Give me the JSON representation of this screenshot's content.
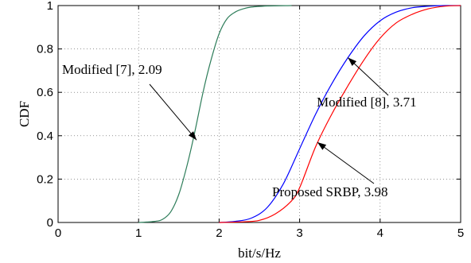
{
  "chart_data": {
    "type": "line",
    "xlabel": "bit/s/Hz",
    "ylabel": "CDF",
    "xlim": [
      0,
      5
    ],
    "ylim": [
      0,
      1
    ],
    "xticks": [
      "0",
      "1",
      "2",
      "3",
      "4",
      "5"
    ],
    "yticks": [
      "0",
      "0.2",
      "0.4",
      "0.6",
      "0.8",
      "1"
    ],
    "grid": true,
    "series": [
      {
        "color": "#2e7d5a",
        "x": [
          1.0,
          1.2,
          1.3,
          1.4,
          1.5,
          1.6,
          1.7,
          1.8,
          1.9,
          2.0,
          2.1,
          2.2,
          2.3,
          2.4,
          2.6,
          2.9
        ],
        "y": [
          0.0,
          0.005,
          0.015,
          0.05,
          0.13,
          0.26,
          0.42,
          0.6,
          0.75,
          0.87,
          0.94,
          0.97,
          0.985,
          0.993,
          0.998,
          1.0
        ]
      },
      {
        "color": "#0000ff",
        "x": [
          2.0,
          2.2,
          2.4,
          2.6,
          2.8,
          3.0,
          3.2,
          3.4,
          3.6,
          3.8,
          4.0,
          4.2,
          4.4,
          4.6,
          4.8,
          5.0
        ],
        "y": [
          0.0,
          0.005,
          0.02,
          0.07,
          0.18,
          0.34,
          0.5,
          0.64,
          0.76,
          0.86,
          0.93,
          0.97,
          0.99,
          0.997,
          1.0,
          1.0
        ]
      },
      {
        "color": "#ff0000",
        "x": [
          2.0,
          2.3,
          2.5,
          2.7,
          2.9,
          3.0,
          3.2,
          3.4,
          3.6,
          3.8,
          4.0,
          4.2,
          4.4,
          4.6,
          4.8,
          5.0
        ],
        "y": [
          0.0,
          0.003,
          0.01,
          0.04,
          0.1,
          0.16,
          0.35,
          0.5,
          0.63,
          0.75,
          0.85,
          0.92,
          0.96,
          0.985,
          0.997,
          1.0
        ]
      }
    ],
    "annotations": [
      {
        "text": "Modified [7], 2.09",
        "point": [
          1.72,
          0.38
        ]
      },
      {
        "text": "Modified [8], 3.71",
        "point": [
          3.6,
          0.76
        ]
      },
      {
        "text": "Proposed SRBP, 3.98",
        "point": [
          3.22,
          0.37
        ]
      }
    ]
  }
}
